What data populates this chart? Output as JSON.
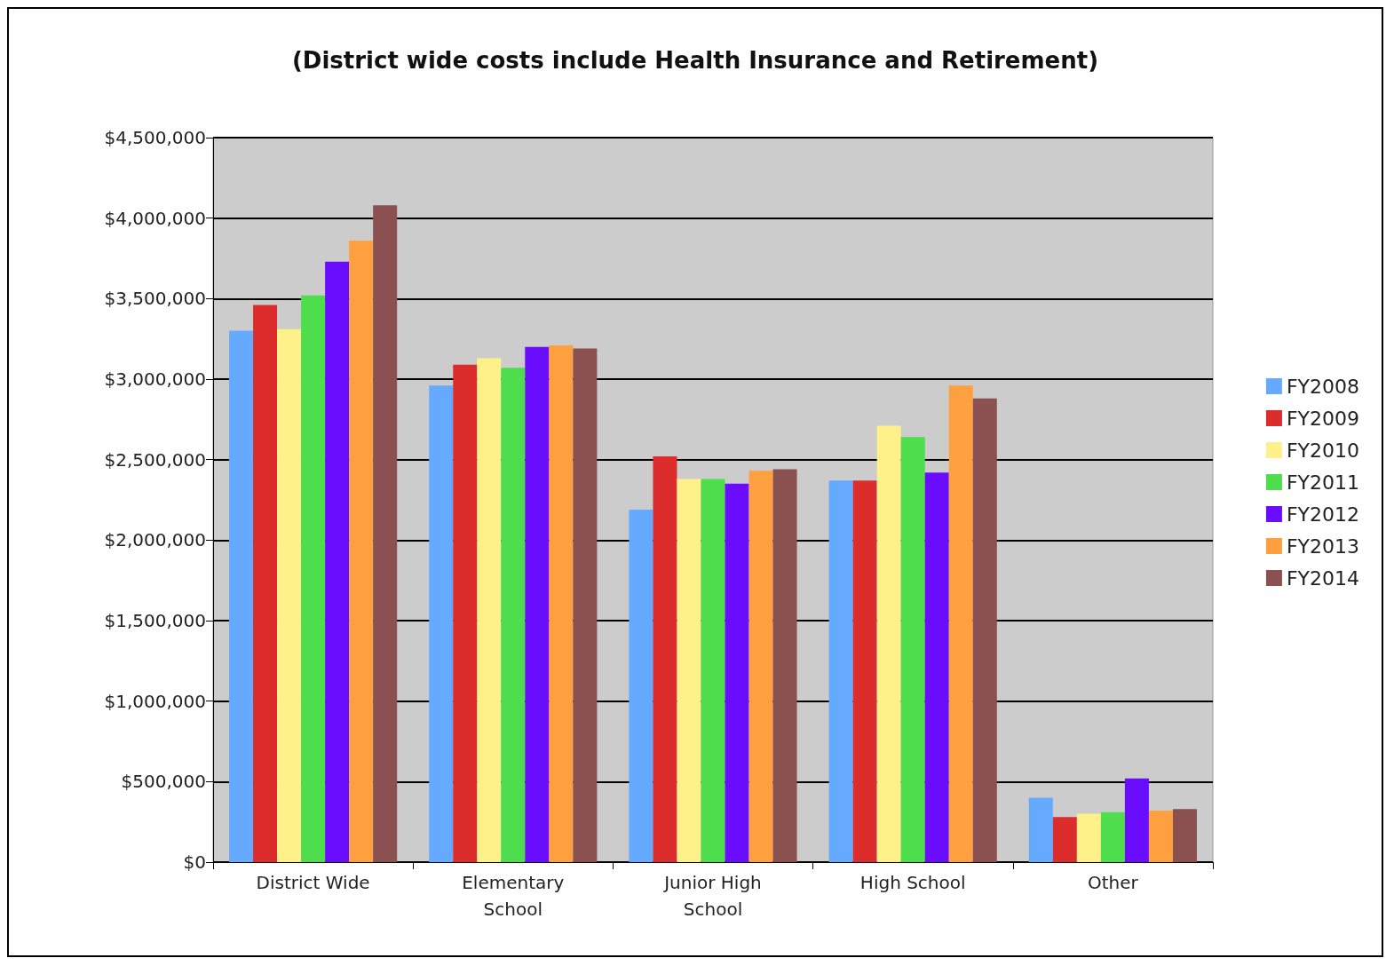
{
  "chart_data": {
    "type": "bar",
    "title": "(District wide costs include Health Insurance and Retirement)",
    "categories": [
      "District Wide",
      "Elementary\nSchool",
      "Junior High\nSchool",
      "High School",
      "Other"
    ],
    "series": [
      {
        "name": "FY2008",
        "color": "#66aaff",
        "values": [
          3300000,
          2960000,
          2190000,
          2370000,
          400000
        ]
      },
      {
        "name": "FY2009",
        "color": "#dd2c2c",
        "values": [
          3460000,
          3090000,
          2520000,
          2370000,
          280000
        ]
      },
      {
        "name": "FY2010",
        "color": "#fff18a",
        "values": [
          3310000,
          3130000,
          2380000,
          2710000,
          300000
        ]
      },
      {
        "name": "FY2011",
        "color": "#4ddd4d",
        "values": [
          3520000,
          3070000,
          2380000,
          2640000,
          310000
        ]
      },
      {
        "name": "FY2012",
        "color": "#6a0dff",
        "values": [
          3730000,
          3200000,
          2350000,
          2420000,
          520000
        ]
      },
      {
        "name": "FY2013",
        "color": "#ffa040",
        "values": [
          3860000,
          3210000,
          2430000,
          2960000,
          320000
        ]
      },
      {
        "name": "FY2014",
        "color": "#8b5050",
        "values": [
          4080000,
          3190000,
          2440000,
          2880000,
          330000
        ]
      }
    ],
    "ylim": [
      0,
      4500000
    ],
    "yticks": [
      {
        "value": 0,
        "label": "$0"
      },
      {
        "value": 500000,
        "label": "$500,000"
      },
      {
        "value": 1000000,
        "label": "$1,000,000"
      },
      {
        "value": 1500000,
        "label": "$1,500,000"
      },
      {
        "value": 2000000,
        "label": "$2,000,000"
      },
      {
        "value": 2500000,
        "label": "$2,500,000"
      },
      {
        "value": 3000000,
        "label": "$3,000,000"
      },
      {
        "value": 3500000,
        "label": "$3,500,000"
      },
      {
        "value": 4000000,
        "label": "$4,000,000"
      },
      {
        "value": 4500000,
        "label": "$4,500,000"
      }
    ],
    "grid": "y",
    "legend": "right"
  }
}
